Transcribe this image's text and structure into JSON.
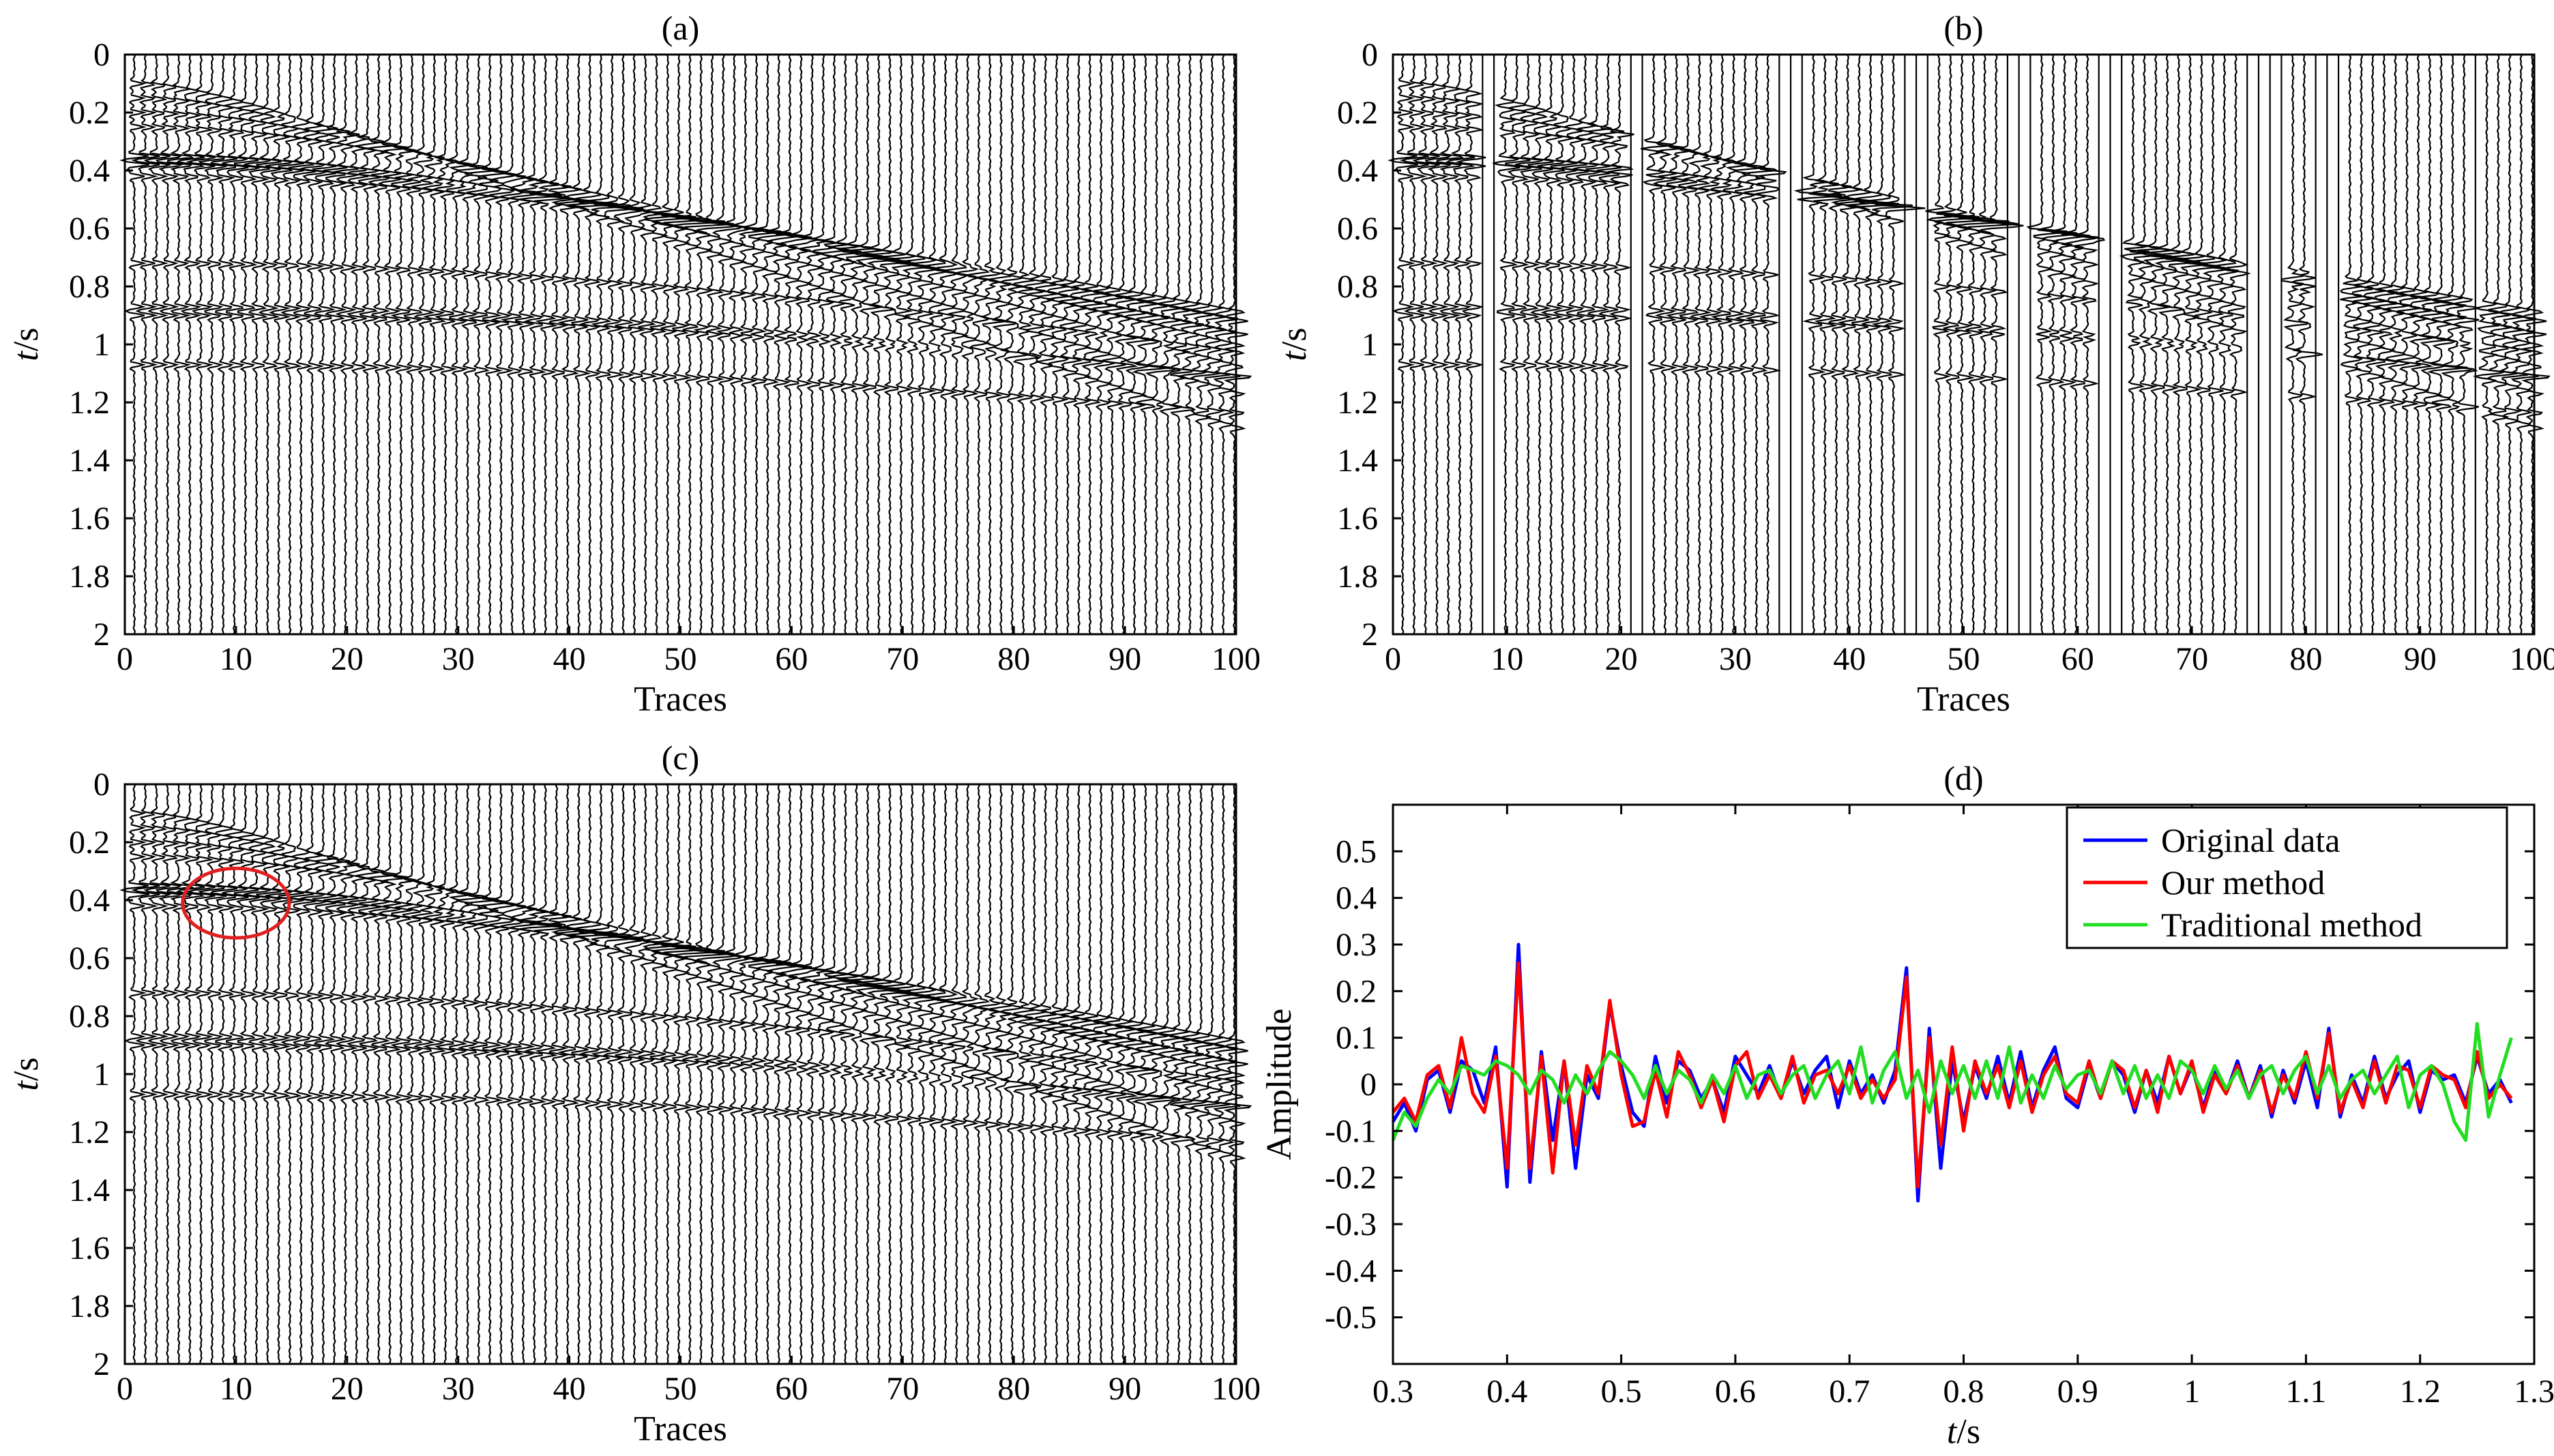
{
  "chart_data": [
    {
      "panel": "(a)",
      "type": "seismic-wiggle",
      "title": "(a)",
      "xlabel": "Traces",
      "ylabel_italic": "t",
      "ylabel_unit": "/s",
      "xlim": [
        0,
        100
      ],
      "ylim": [
        0,
        2
      ],
      "xticks": [
        "0",
        "10",
        "20",
        "30",
        "40",
        "50",
        "60",
        "70",
        "80",
        "90",
        "100"
      ],
      "yticks": [
        "0",
        "0.2",
        "0.4",
        "0.6",
        "0.8",
        "1",
        "1.2",
        "1.4",
        "1.6",
        "1.8",
        "2"
      ],
      "n_traces": 100,
      "events_t0": [
        0.1,
        0.15,
        0.2,
        0.25,
        0.35,
        0.38,
        0.42,
        0.72,
        0.87,
        0.9,
        1.07
      ],
      "missing_traces": []
    },
    {
      "panel": "(b)",
      "type": "seismic-wiggle",
      "title": "(b)",
      "xlabel": "Traces",
      "ylabel_italic": "t",
      "ylabel_unit": "/s",
      "xlim": [
        0,
        100
      ],
      "ylim": [
        0,
        2
      ],
      "xticks": [
        "0",
        "10",
        "20",
        "30",
        "40",
        "50",
        "60",
        "70",
        "80",
        "90",
        "100"
      ],
      "yticks": [
        "0",
        "0.2",
        "0.4",
        "0.6",
        "0.8",
        "1",
        "1.2",
        "1.4",
        "1.6",
        "1.8",
        "2"
      ],
      "n_traces": 100,
      "events_t0": [
        0.1,
        0.15,
        0.2,
        0.25,
        0.35,
        0.38,
        0.42,
        0.72,
        0.87,
        0.9,
        1.07
      ],
      "missing_traces": [
        8,
        9,
        21,
        22,
        34,
        35,
        36,
        45,
        46,
        47,
        54,
        55,
        56,
        62,
        63,
        64,
        75,
        76,
        77,
        78,
        81,
        82,
        83,
        95
      ]
    },
    {
      "panel": "(c)",
      "type": "seismic-wiggle",
      "title": "(c)",
      "xlabel": "Traces",
      "ylabel_italic": "t",
      "ylabel_unit": "/s",
      "xlim": [
        0,
        100
      ],
      "ylim": [
        0,
        2
      ],
      "xticks": [
        "0",
        "10",
        "20",
        "30",
        "40",
        "50",
        "60",
        "70",
        "80",
        "90",
        "100"
      ],
      "yticks": [
        "0",
        "0.2",
        "0.4",
        "0.6",
        "0.8",
        "1",
        "1.2",
        "1.4",
        "1.6",
        "1.8",
        "2"
      ],
      "n_traces": 100,
      "events_t0": [
        0.1,
        0.15,
        0.2,
        0.25,
        0.35,
        0.38,
        0.42,
        0.72,
        0.87,
        0.9,
        1.07
      ],
      "missing_traces": [],
      "annotation": {
        "shape": "ellipse",
        "color": "#e02020",
        "center": [
          10,
          0.41
        ],
        "radius_traces": 4.8,
        "radius_t": 0.12
      }
    },
    {
      "panel": "(d)",
      "type": "line",
      "title": "(d)",
      "xlabel_italic": "t",
      "xlabel_unit": "/s",
      "ylabel": "Amplitude",
      "xlim": [
        0.3,
        1.3
      ],
      "ylim": [
        -0.6,
        0.6
      ],
      "xticks": [
        "0.3",
        "0.4",
        "0.5",
        "0.6",
        "0.7",
        "0.8",
        "0.9",
        "1",
        "1.1",
        "1.2",
        "1.3"
      ],
      "yticks": [
        "0.5",
        "0.4",
        "0.3",
        "0.2",
        "0.1",
        "0",
        "-0.1",
        "-0.2",
        "-0.3",
        "-0.4",
        "-0.5"
      ],
      "legend_position": "top-right",
      "x": [
        0.3,
        0.31,
        0.32,
        0.33,
        0.34,
        0.35,
        0.36,
        0.37,
        0.38,
        0.39,
        0.4,
        0.41,
        0.42,
        0.43,
        0.44,
        0.45,
        0.46,
        0.47,
        0.48,
        0.49,
        0.5,
        0.51,
        0.52,
        0.53,
        0.54,
        0.55,
        0.56,
        0.57,
        0.58,
        0.59,
        0.6,
        0.61,
        0.62,
        0.63,
        0.64,
        0.65,
        0.66,
        0.67,
        0.68,
        0.69,
        0.7,
        0.71,
        0.72,
        0.73,
        0.74,
        0.75,
        0.76,
        0.77,
        0.78,
        0.79,
        0.8,
        0.81,
        0.82,
        0.83,
        0.84,
        0.85,
        0.86,
        0.87,
        0.88,
        0.89,
        0.9,
        0.91,
        0.92,
        0.93,
        0.94,
        0.95,
        0.96,
        0.97,
        0.98,
        0.99,
        1.0,
        1.01,
        1.02,
        1.03,
        1.04,
        1.05,
        1.06,
        1.07,
        1.08,
        1.09,
        1.1,
        1.11,
        1.12,
        1.13,
        1.14,
        1.15,
        1.16,
        1.17,
        1.18,
        1.19,
        1.2,
        1.21,
        1.22,
        1.23,
        1.24,
        1.25,
        1.26,
        1.27,
        1.28
      ],
      "series": [
        {
          "name": "Original data",
          "color": "#0000ff",
          "values": [
            -0.08,
            -0.04,
            -0.1,
            0.01,
            0.03,
            -0.06,
            0.05,
            0.03,
            -0.04,
            0.08,
            -0.22,
            0.3,
            -0.21,
            0.07,
            -0.12,
            0.05,
            -0.18,
            0.02,
            -0.03,
            0.17,
            0.04,
            -0.06,
            -0.09,
            0.06,
            -0.04,
            0.05,
            0.03,
            -0.03,
            0.01,
            -0.06,
            0.06,
            0.02,
            -0.02,
            0.04,
            -0.03,
            0.05,
            -0.02,
            0.03,
            0.06,
            -0.05,
            0.05,
            -0.02,
            0.02,
            -0.04,
            0.03,
            0.25,
            -0.25,
            0.12,
            -0.18,
            0.05,
            -0.08,
            0.04,
            -0.03,
            0.06,
            -0.04,
            0.07,
            -0.05,
            0.03,
            0.08,
            -0.03,
            -0.05,
            0.04,
            -0.03,
            0.05,
            0.02,
            -0.06,
            0.03,
            -0.04,
            0.06,
            -0.02,
            0.04,
            -0.05,
            0.03,
            -0.02,
            0.05,
            -0.03,
            0.04,
            -0.07,
            0.03,
            -0.04,
            0.05,
            -0.05,
            0.12,
            -0.07,
            0.02,
            -0.04,
            0.06,
            -0.03,
            0.02,
            0.05,
            -0.06,
            0.03,
            0.01,
            0.02,
            -0.04,
            0.06,
            -0.02,
            0.01,
            -0.04
          ]
        },
        {
          "name": "Our method",
          "color": "#ff0000",
          "values": [
            -0.06,
            -0.03,
            -0.08,
            0.02,
            0.04,
            -0.05,
            0.1,
            -0.02,
            -0.06,
            0.06,
            -0.18,
            0.26,
            -0.18,
            0.06,
            -0.19,
            0.05,
            -0.13,
            0.04,
            -0.02,
            0.18,
            0.02,
            -0.09,
            -0.08,
            0.03,
            -0.07,
            0.07,
            0.02,
            -0.05,
            0.01,
            -0.08,
            0.04,
            0.07,
            -0.03,
            0.02,
            -0.03,
            0.06,
            -0.04,
            0.02,
            0.03,
            -0.02,
            0.04,
            -0.03,
            0.01,
            -0.03,
            0.01,
            0.23,
            -0.22,
            0.1,
            -0.13,
            0.08,
            -0.1,
            0.05,
            -0.02,
            0.04,
            -0.05,
            0.05,
            -0.06,
            0.02,
            0.06,
            -0.02,
            -0.04,
            0.05,
            -0.03,
            0.05,
            0.03,
            -0.05,
            0.03,
            -0.06,
            0.06,
            -0.02,
            0.05,
            -0.06,
            0.02,
            -0.02,
            0.04,
            -0.03,
            0.03,
            -0.06,
            0.02,
            -0.03,
            0.07,
            -0.03,
            0.11,
            -0.06,
            0.01,
            -0.05,
            0.05,
            -0.04,
            0.04,
            0.03,
            -0.05,
            0.04,
            0.02,
            0.01,
            -0.05,
            0.07,
            -0.03,
            0.0,
            -0.03
          ]
        },
        {
          "name": "Traditional method",
          "color": "#22dd22",
          "values": [
            -0.12,
            -0.06,
            -0.09,
            -0.03,
            0.01,
            -0.02,
            0.04,
            0.03,
            0.02,
            0.05,
            0.04,
            0.02,
            -0.02,
            0.03,
            0.01,
            -0.04,
            0.02,
            -0.02,
            0.03,
            0.07,
            0.05,
            0.02,
            -0.03,
            0.04,
            -0.02,
            0.03,
            0.01,
            -0.04,
            0.02,
            -0.02,
            0.04,
            -0.03,
            0.02,
            0.03,
            -0.02,
            0.02,
            0.04,
            -0.03,
            0.02,
            0.05,
            -0.02,
            0.08,
            -0.04,
            0.03,
            0.07,
            -0.03,
            0.03,
            -0.06,
            0.05,
            -0.02,
            0.04,
            -0.03,
            0.05,
            -0.03,
            0.08,
            -0.04,
            0.02,
            -0.03,
            0.04,
            -0.01,
            0.02,
            0.03,
            -0.02,
            0.05,
            -0.02,
            0.04,
            -0.03,
            0.02,
            -0.03,
            0.05,
            0.03,
            -0.02,
            0.04,
            -0.01,
            0.03,
            -0.03,
            0.02,
            0.04,
            -0.02,
            0.03,
            0.06,
            -0.02,
            0.04,
            -0.03,
            0.01,
            0.03,
            -0.02,
            0.02,
            0.06,
            -0.05,
            0.02,
            0.04,
            0.0,
            -0.08,
            -0.12,
            0.13,
            -0.07,
            0.02,
            0.1
          ]
        }
      ]
    }
  ]
}
